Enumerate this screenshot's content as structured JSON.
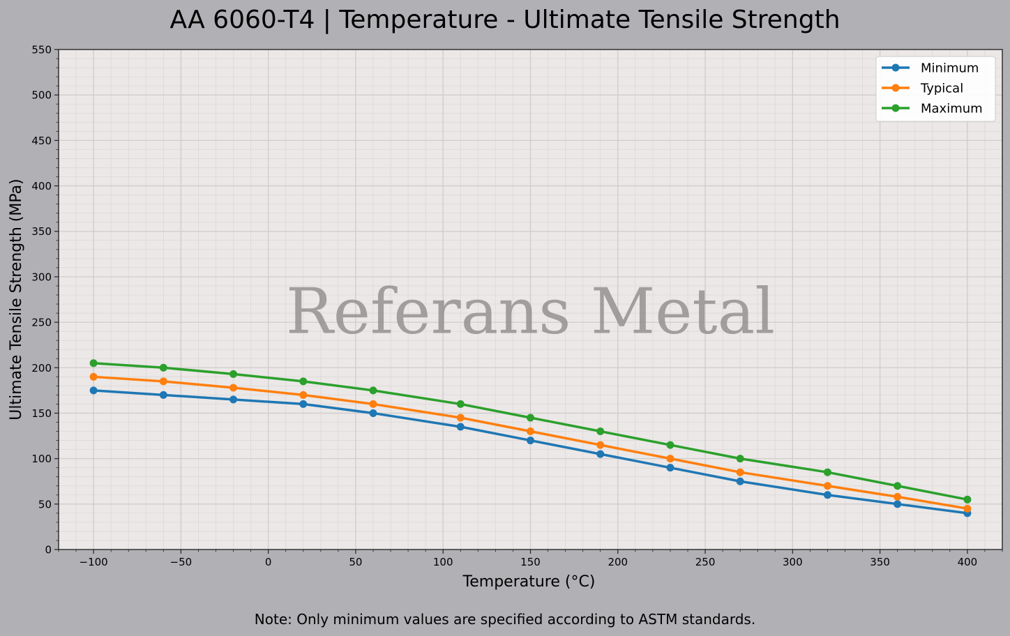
{
  "chart_data": {
    "type": "line",
    "title": "AA 6060-T4 | Temperature - Ultimate Tensile Strength",
    "xlabel": "Temperature (°C)",
    "ylabel": "Ultimate Tensile Strength (MPa)",
    "note": "Note: Only minimum values are specified according to ASTM standards.",
    "watermark": "Referans Metal",
    "xlim": [
      -120,
      420
    ],
    "ylim": [
      0,
      550
    ],
    "xticks": [
      -100,
      -50,
      0,
      50,
      100,
      150,
      200,
      250,
      300,
      350,
      400
    ],
    "xtick_labels": [
      "−100",
      "−50",
      "0",
      "50",
      "100",
      "150",
      "200",
      "250",
      "300",
      "350",
      "400"
    ],
    "yticks": [
      0,
      50,
      100,
      150,
      200,
      250,
      300,
      350,
      400,
      450,
      500,
      550
    ],
    "ytick_labels": [
      "0",
      "50",
      "100",
      "150",
      "200",
      "250",
      "300",
      "350",
      "400",
      "450",
      "500",
      "550"
    ],
    "grid": true,
    "legend_position": "top-right",
    "x": [
      -100,
      -60,
      -20,
      20,
      60,
      110,
      150,
      190,
      230,
      270,
      320,
      360,
      400
    ],
    "series": [
      {
        "name": "Minimum",
        "color": "#1f77b4",
        "values": [
          175,
          170,
          165,
          160,
          150,
          135,
          120,
          105,
          90,
          75,
          60,
          50,
          40
        ]
      },
      {
        "name": "Typical",
        "color": "#ff7f0e",
        "values": [
          190,
          185,
          178,
          170,
          160,
          145,
          130,
          115,
          100,
          85,
          70,
          58,
          45
        ]
      },
      {
        "name": "Maximum",
        "color": "#2ca02c",
        "values": [
          205,
          200,
          193,
          185,
          175,
          160,
          145,
          130,
          115,
          100,
          85,
          70,
          55
        ]
      }
    ],
    "plot_background": "#ebe8e7",
    "figure_background": "#b1b0b5"
  }
}
